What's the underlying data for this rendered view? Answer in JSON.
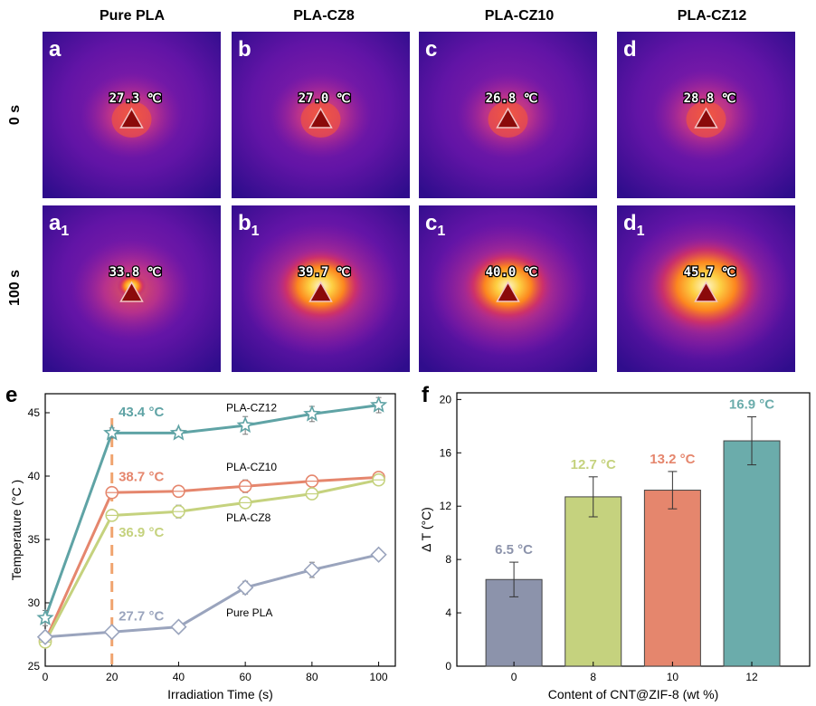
{
  "thermal_grid": {
    "column_headers": [
      "Pure PLA",
      "PLA-CZ8",
      "PLA-CZ10",
      "PLA-CZ12"
    ],
    "row_labels": [
      "0 s",
      "100 s"
    ],
    "panels": [
      {
        "letter": "a",
        "sub": "",
        "temp": "27.3 ℃",
        "hot": 0.1
      },
      {
        "letter": "b",
        "sub": "",
        "temp": "27.0 ℃",
        "hot": 0.1
      },
      {
        "letter": "c",
        "sub": "",
        "temp": "26.8 ℃",
        "hot": 0.1
      },
      {
        "letter": "d",
        "sub": "",
        "temp": "28.8 ℃",
        "hot": 0.18
      },
      {
        "letter": "a",
        "sub": "1",
        "temp": "33.8 ℃",
        "hot": 0.35
      },
      {
        "letter": "b",
        "sub": "1",
        "temp": "39.7 ℃",
        "hot": 0.85
      },
      {
        "letter": "c",
        "sub": "1",
        "temp": "40.0 ℃",
        "hot": 0.85
      },
      {
        "letter": "d",
        "sub": "1",
        "temp": "45.7 ℃",
        "hot": 1.0
      }
    ]
  },
  "chart_data": [
    {
      "panel": "e",
      "type": "line",
      "xlabel": "Irradiation Time (s)",
      "ylabel": "Temperature (°C )",
      "xlim": [
        0,
        105
      ],
      "ylim": [
        25,
        46.5
      ],
      "xticks": [
        0,
        20,
        40,
        60,
        80,
        100
      ],
      "yticks": [
        25,
        30,
        35,
        40,
        45
      ],
      "x": [
        0,
        20,
        40,
        60,
        80,
        100
      ],
      "series": [
        {
          "name": "PLA-CZ12",
          "color": "#5fa3a5",
          "marker": "star",
          "values": [
            28.8,
            43.4,
            43.4,
            44.0,
            44.9,
            45.6
          ],
          "err": [
            0.6,
            0.4,
            0.3,
            0.7,
            0.6,
            0.6
          ]
        },
        {
          "name": "PLA-CZ10",
          "color": "#e5866d",
          "marker": "circle",
          "values": [
            27.0,
            38.7,
            38.8,
            39.2,
            39.6,
            39.9
          ],
          "err": [
            0.4,
            0.4,
            0.3,
            0.5,
            0.4,
            0.3
          ]
        },
        {
          "name": "PLA-CZ8",
          "color": "#c5d27e",
          "marker": "circle",
          "values": [
            26.9,
            36.9,
            37.2,
            37.9,
            38.6,
            39.7
          ],
          "err": [
            0.4,
            0.4,
            0.5,
            0.4,
            0.4,
            0.4
          ]
        },
        {
          "name": "Pure PLA",
          "color": "#9aa4bd",
          "marker": "diamond",
          "values": [
            27.3,
            27.7,
            28.1,
            31.2,
            32.6,
            33.8
          ],
          "err": [
            0.3,
            0.3,
            0.4,
            0.5,
            0.6,
            0.4
          ]
        }
      ],
      "annotations": [
        {
          "text": "43.4 °C",
          "color": "#5fa3a5",
          "x": 22,
          "y": 44.7
        },
        {
          "text": "38.7 °C",
          "color": "#e5866d",
          "x": 22,
          "y": 39.6
        },
        {
          "text": "36.9 °C",
          "color": "#c5d27e",
          "x": 22,
          "y": 35.2
        },
        {
          "text": "27.7 °C",
          "color": "#9aa4bd",
          "x": 22,
          "y": 28.6
        }
      ],
      "vline": {
        "x": 20,
        "color": "#f0a46f"
      }
    },
    {
      "panel": "f",
      "type": "bar",
      "xlabel": "Content of CNT@ZIF-8 (wt %)",
      "ylabel": "Δ T (°C)",
      "ylim": [
        0,
        20.5
      ],
      "yticks": [
        0,
        4,
        8,
        12,
        16,
        20
      ],
      "categories": [
        "0",
        "8",
        "10",
        "12"
      ],
      "values": [
        6.5,
        12.7,
        13.2,
        16.9
      ],
      "err": [
        1.3,
        1.5,
        1.4,
        1.8
      ],
      "colors": [
        "#8c93ab",
        "#c5d27e",
        "#e5866d",
        "#6bacab"
      ],
      "labels": [
        "6.5 °C",
        "12.7 °C",
        "13.2 °C",
        "16.9 °C"
      ]
    }
  ]
}
